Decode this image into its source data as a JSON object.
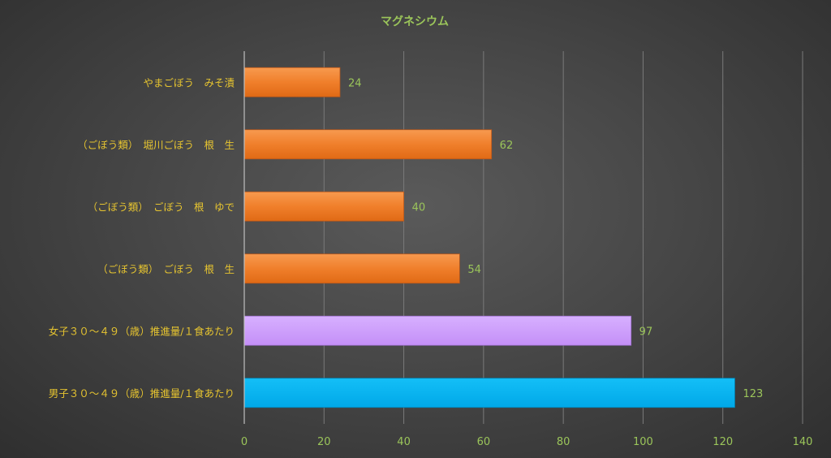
{
  "chart_data": {
    "type": "bar",
    "orientation": "horizontal",
    "title": "マグネシウム",
    "xlabel": "",
    "ylabel": "",
    "xlim": [
      0,
      140
    ],
    "x_ticks": [
      0,
      20,
      40,
      60,
      80,
      100,
      120,
      140
    ],
    "grid": true,
    "legend": "none",
    "categories": [
      "やまごぼう　みそ漬",
      "（ごぼう類）　堀川ごぼう　根　生",
      "（ごぼう類）　ごぼう　根　ゆで",
      "（ごぼう類）　ごぼう　根　生",
      "女子３０～４９（歳）推進量/１食あたり",
      "男子３０～４９（歳）推進量/１食あたり"
    ],
    "values": [
      24,
      62,
      40,
      54,
      97,
      123
    ],
    "colors": [
      "#f07f2b",
      "#f07f2b",
      "#f07f2b",
      "#f07f2b",
      "#cc99ff",
      "#00b0f0"
    ],
    "text_colors": {
      "title": "#9bc55a",
      "category_labels": "#e6c430",
      "tick_labels": "#9bc55a",
      "data_labels": "#9bc55a"
    }
  }
}
